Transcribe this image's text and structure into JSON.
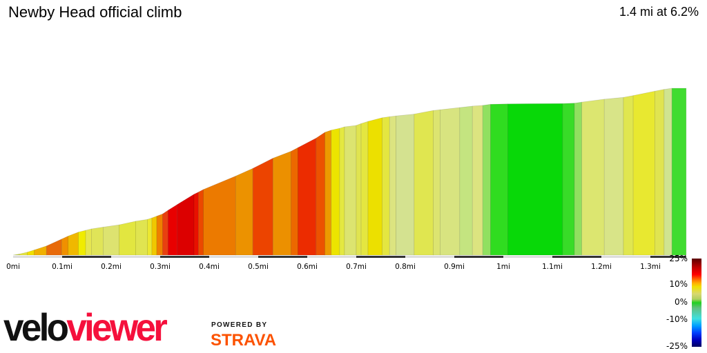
{
  "header": {
    "title": "Newby Head official climb",
    "summary": "1.4 mi at 6.2%"
  },
  "chart_data": {
    "type": "area",
    "title": "Newby Head official climb",
    "xlabel": "",
    "ylabel": "",
    "x_unit": "mi",
    "xlim": [
      0,
      1.373
    ],
    "x_ticks": [
      "0mi",
      "0.1mi",
      "0.2mi",
      "0.3mi",
      "0.4mi",
      "0.5mi",
      "0.6mi",
      "0.7mi",
      "0.8mi",
      "0.9mi",
      "1mi",
      "1.1mi",
      "1.2mi",
      "1.3mi"
    ],
    "profile_points": [
      [
        0,
        0
      ],
      [
        0.013,
        3
      ],
      [
        0.029,
        8
      ],
      [
        0.043,
        14
      ],
      [
        0.068,
        25
      ],
      [
        0.099,
        44
      ],
      [
        0.112,
        52
      ],
      [
        0.133,
        63
      ],
      [
        0.148,
        68
      ],
      [
        0.16,
        72
      ],
      [
        0.184,
        77
      ],
      [
        0.216,
        83
      ],
      [
        0.25,
        93
      ],
      [
        0.274,
        98
      ],
      [
        0.283,
        102
      ],
      [
        0.293,
        107
      ],
      [
        0.305,
        113
      ],
      [
        0.316,
        123
      ],
      [
        0.335,
        139
      ],
      [
        0.369,
        167
      ],
      [
        0.378,
        173
      ],
      [
        0.388,
        180
      ],
      [
        0.454,
        217
      ],
      [
        0.489,
        238
      ],
      [
        0.53,
        266
      ],
      [
        0.567,
        285
      ],
      [
        0.581,
        295
      ],
      [
        0.618,
        321
      ],
      [
        0.636,
        337
      ],
      [
        0.649,
        343
      ],
      [
        0.666,
        348
      ],
      [
        0.676,
        352
      ],
      [
        0.7,
        356
      ],
      [
        0.71,
        361
      ],
      [
        0.724,
        367
      ],
      [
        0.753,
        377
      ],
      [
        0.768,
        380
      ],
      [
        0.781,
        382
      ],
      [
        0.818,
        387
      ],
      [
        0.857,
        397
      ],
      [
        0.871,
        399
      ],
      [
        0.911,
        405
      ],
      [
        0.937,
        409
      ],
      [
        0.958,
        411
      ],
      [
        0.974,
        414
      ],
      [
        1.009,
        415
      ],
      [
        1.121,
        416
      ],
      [
        1.145,
        417
      ],
      [
        1.16,
        420
      ],
      [
        1.206,
        428
      ],
      [
        1.245,
        433
      ],
      [
        1.265,
        438
      ],
      [
        1.309,
        450
      ],
      [
        1.328,
        455
      ],
      [
        1.344,
        458
      ],
      [
        1.373,
        458
      ]
    ],
    "segment_colors": [
      "#c8d840",
      "#e4e440",
      "#f0e000",
      "#f0b000",
      "#e86a0a",
      "#f09000",
      "#f0b800",
      "#f0ec00",
      "#e6e650",
      "#e0e458",
      "#dde370",
      "#e2e640",
      "#e0e450",
      "#ece830",
      "#f0c800",
      "#ee8000",
      "#e84010",
      "#e80000",
      "#dc0000",
      "#e81000",
      "#ec4800",
      "#ec7a00",
      "#ec9200",
      "#ec4400",
      "#ec9000",
      "#ec6800",
      "#ec2c00",
      "#ec5200",
      "#ec9a00",
      "#ece400",
      "#e4e840",
      "#dce470",
      "#e0e450",
      "#e4e640",
      "#ece000",
      "#e4e640",
      "#dce480",
      "#d4e290",
      "#e0e650",
      "#dce470",
      "#d8e480",
      "#c4e480",
      "#dce480",
      "#90e060",
      "#30dc20",
      "#08d808",
      "#38dc28",
      "#90e060",
      "#dce670",
      "#d8e488",
      "#e0e650",
      "#e8e830",
      "#e0e450",
      "#d0e490",
      "#40dc30"
    ],
    "gradient_legend": [
      "25%",
      "10%",
      "0%",
      "-10%",
      "-25%"
    ]
  },
  "branding": {
    "logo_part1": "velo",
    "logo_part2": "viewer",
    "powered_by": "POWERED BY",
    "strava": "STRAVA"
  }
}
